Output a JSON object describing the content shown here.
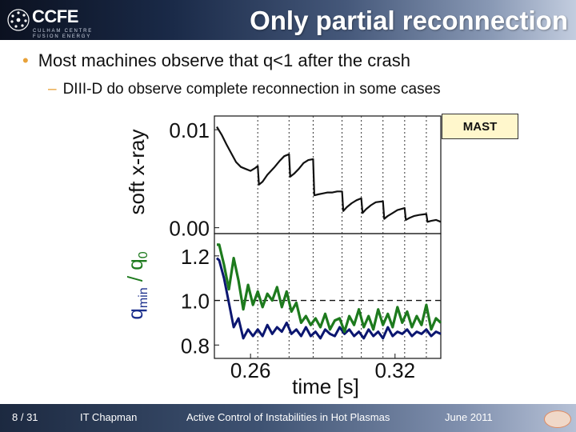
{
  "header": {
    "logo_text": "CCFE",
    "logo_sub1": "CULHAM CENTRE",
    "logo_sub2": "FUSION ENERGY",
    "title": "Only partial reconnection"
  },
  "bullets": {
    "main": "Most machines observe that q<1 after the crash",
    "sub": "DIII-D do observe complete reconnection in some cases"
  },
  "figure_label": "MAST",
  "footer": {
    "page": "8 / 31",
    "author": "IT Chapman",
    "talk": "Active Control of Instabilities in Hot Plasmas",
    "date": "June 2011"
  },
  "colors": {
    "accent": "#e8a23a",
    "sxr_line": "#111111",
    "qmin_line": "#0b1670",
    "q0_line": "#1d7a1d"
  },
  "chart_data": [
    {
      "type": "line",
      "title": "",
      "ylabel": "soft x-ray",
      "xlim": [
        0.245,
        0.339
      ],
      "ylim": [
        -0.0006,
        0.0114
      ],
      "yticks": [
        0.0,
        0.01
      ],
      "ytick_labels": [
        "0.00",
        "0.01"
      ],
      "crash_times": [
        0.263,
        0.276,
        0.286,
        0.298,
        0.306,
        0.315,
        0.324,
        0.333
      ],
      "series": [
        {
          "name": "soft x-ray",
          "x": [
            0.246,
            0.248,
            0.25,
            0.252,
            0.254,
            0.256,
            0.258,
            0.26,
            0.262,
            0.263,
            0.2635,
            0.265,
            0.267,
            0.27,
            0.272,
            0.274,
            0.276,
            0.2765,
            0.278,
            0.28,
            0.282,
            0.284,
            0.286,
            0.2865,
            0.288,
            0.29,
            0.292,
            0.294,
            0.296,
            0.298,
            0.2985,
            0.3,
            0.302,
            0.304,
            0.306,
            0.3065,
            0.308,
            0.31,
            0.312,
            0.315,
            0.3155,
            0.317,
            0.319,
            0.321,
            0.324,
            0.3245,
            0.326,
            0.328,
            0.33,
            0.333,
            0.3335,
            0.335,
            0.337,
            0.339
          ],
          "y": [
            0.0103,
            0.0095,
            0.0085,
            0.0076,
            0.0067,
            0.0062,
            0.006,
            0.0058,
            0.0061,
            0.0063,
            0.0044,
            0.0047,
            0.0054,
            0.0062,
            0.0068,
            0.0073,
            0.0075,
            0.0052,
            0.0055,
            0.006,
            0.0066,
            0.0069,
            0.007,
            0.0033,
            0.0034,
            0.0035,
            0.0036,
            0.0036,
            0.0037,
            0.0037,
            0.0017,
            0.0021,
            0.0025,
            0.0028,
            0.003,
            0.0015,
            0.0019,
            0.0023,
            0.0026,
            0.0027,
            0.0009,
            0.0012,
            0.0015,
            0.0018,
            0.002,
            0.0008,
            0.001,
            0.0012,
            0.0013,
            0.0014,
            0.0006,
            0.0007,
            0.0008,
            0.0006
          ]
        }
      ]
    },
    {
      "type": "line",
      "title": "",
      "ylabel": "q_min / q_0",
      "ylabel_parts": {
        "q1": "q",
        "sub": "min",
        "sep": " / q",
        "sub0": "0"
      },
      "xlabel": "time [s]",
      "xlim": [
        0.245,
        0.339
      ],
      "ylim": [
        0.74,
        1.3
      ],
      "xticks": [
        0.26,
        0.32
      ],
      "xtick_labels": [
        "0.26",
        "0.32"
      ],
      "yticks": [
        0.8,
        1.0,
        1.2
      ],
      "ytick_labels": [
        "0.8",
        "1.0",
        "1.2"
      ],
      "reference_line": 1.0,
      "series": [
        {
          "name": "q0",
          "x": [
            0.246,
            0.247,
            0.249,
            0.251,
            0.253,
            0.255,
            0.257,
            0.259,
            0.261,
            0.263,
            0.265,
            0.267,
            0.269,
            0.271,
            0.273,
            0.275,
            0.277,
            0.279,
            0.281,
            0.283,
            0.285,
            0.287,
            0.289,
            0.291,
            0.293,
            0.295,
            0.297,
            0.299,
            0.301,
            0.303,
            0.305,
            0.307,
            0.309,
            0.311,
            0.313,
            0.315,
            0.317,
            0.319,
            0.321,
            0.323,
            0.325,
            0.327,
            0.329,
            0.331,
            0.333,
            0.335,
            0.337,
            0.339
          ],
          "y": [
            1.25,
            1.25,
            1.16,
            1.05,
            1.19,
            1.09,
            0.96,
            1.07,
            0.98,
            1.04,
            0.97,
            1.03,
            1.0,
            1.06,
            0.97,
            1.04,
            0.95,
            0.99,
            0.9,
            0.93,
            0.89,
            0.92,
            0.88,
            0.94,
            0.87,
            0.91,
            0.92,
            0.86,
            0.93,
            0.89,
            0.96,
            0.88,
            0.93,
            0.87,
            0.96,
            0.89,
            0.94,
            0.88,
            0.97,
            0.9,
            0.95,
            0.88,
            0.93,
            0.89,
            0.98,
            0.87,
            0.92,
            0.9
          ]
        },
        {
          "name": "qmin",
          "x": [
            0.246,
            0.247,
            0.249,
            0.251,
            0.253,
            0.255,
            0.257,
            0.259,
            0.261,
            0.263,
            0.265,
            0.267,
            0.269,
            0.271,
            0.273,
            0.275,
            0.277,
            0.279,
            0.281,
            0.283,
            0.285,
            0.287,
            0.289,
            0.291,
            0.293,
            0.295,
            0.297,
            0.299,
            0.301,
            0.303,
            0.305,
            0.307,
            0.309,
            0.311,
            0.313,
            0.315,
            0.317,
            0.319,
            0.321,
            0.323,
            0.325,
            0.327,
            0.329,
            0.331,
            0.333,
            0.335,
            0.337,
            0.339
          ],
          "y": [
            1.19,
            1.18,
            1.1,
            0.99,
            0.88,
            0.92,
            0.83,
            0.87,
            0.84,
            0.87,
            0.84,
            0.89,
            0.85,
            0.88,
            0.86,
            0.9,
            0.85,
            0.87,
            0.84,
            0.88,
            0.84,
            0.86,
            0.83,
            0.87,
            0.85,
            0.84,
            0.88,
            0.85,
            0.87,
            0.84,
            0.86,
            0.83,
            0.87,
            0.84,
            0.86,
            0.83,
            0.88,
            0.84,
            0.86,
            0.85,
            0.87,
            0.84,
            0.86,
            0.85,
            0.87,
            0.84,
            0.86,
            0.85
          ]
        }
      ]
    }
  ]
}
